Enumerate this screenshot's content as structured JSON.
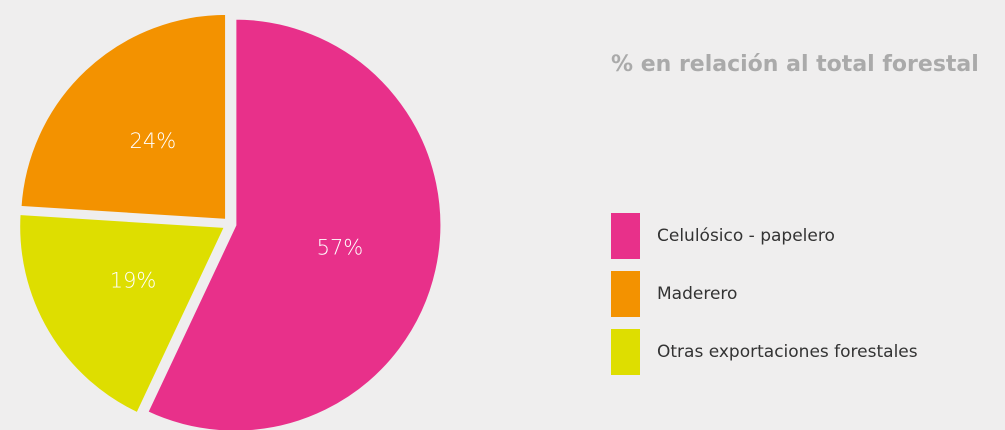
{
  "chart_data": {
    "type": "pie",
    "title": "% en relación al total forestal",
    "categories": [
      "Celulósico - papelero",
      "Maderero",
      "Otras exportaciones forestales"
    ],
    "values": [
      57,
      24,
      19
    ],
    "value_labels": [
      "57%",
      "24%",
      "19%"
    ],
    "colors": [
      "#e8308a",
      "#f39200",
      "#dede00"
    ]
  }
}
